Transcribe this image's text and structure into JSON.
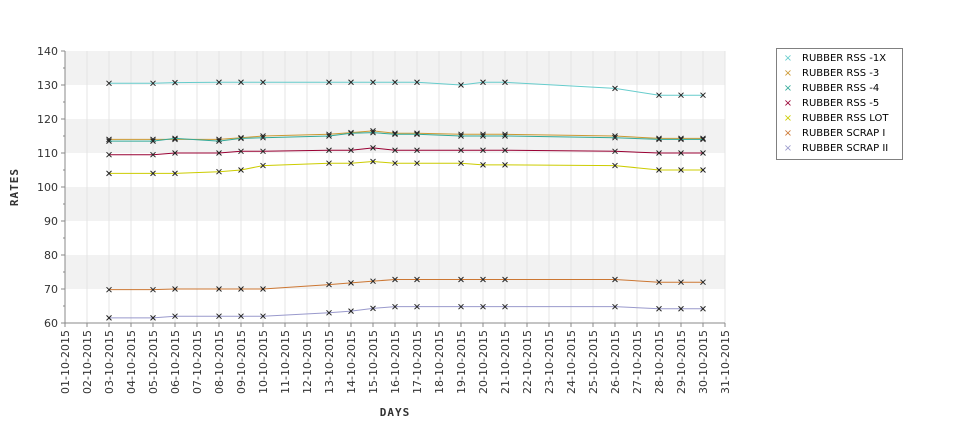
{
  "chart_data": {
    "type": "line",
    "xlabel": "DAYS",
    "ylabel": "RATES",
    "ylim": [
      60,
      140
    ],
    "yticks": [
      60,
      70,
      80,
      90,
      100,
      110,
      120,
      130,
      140
    ],
    "xlim": [
      "01-10-2015",
      "31-10-2015"
    ],
    "xticks": [
      "01-10-2015",
      "02-10-2015",
      "03-10-2015",
      "04-10-2015",
      "05-10-2015",
      "06-10-2015",
      "07-10-2015",
      "08-10-2015",
      "09-10-2015",
      "10-10-2015",
      "11-10-2015",
      "12-10-2015",
      "13-10-2015",
      "14-10-2015",
      "15-10-2015",
      "16-10-2015",
      "17-10-2015",
      "18-10-2015",
      "19-10-2015",
      "20-10-2015",
      "21-10-2015",
      "22-10-2015",
      "23-10-2015",
      "24-10-2015",
      "25-10-2015",
      "26-10-2015",
      "27-10-2015",
      "28-10-2015",
      "29-10-2015",
      "30-10-2015",
      "31-10-2015"
    ],
    "x": [
      "03-10-2015",
      "05-10-2015",
      "06-10-2015",
      "08-10-2015",
      "09-10-2015",
      "10-10-2015",
      "13-10-2015",
      "14-10-2015",
      "15-10-2015",
      "16-10-2015",
      "17-10-2015",
      "19-10-2015",
      "20-10-2015",
      "21-10-2015",
      "26-10-2015",
      "28-10-2015",
      "29-10-2015",
      "30-10-2015"
    ],
    "legend_position": "right",
    "grid": "horizontal bands",
    "series": [
      {
        "name": "RUBBER RSS -1X",
        "color": "#66cccc",
        "values": [
          130.5,
          130.5,
          130.7,
          130.8,
          130.8,
          130.8,
          130.8,
          130.8,
          130.8,
          130.8,
          130.8,
          130,
          130.8,
          130.8,
          129,
          127,
          127,
          127
        ]
      },
      {
        "name": "RUBBER RSS -3",
        "color": "#cc9933",
        "values": [
          114,
          114,
          114,
          114,
          114.5,
          115,
          115.5,
          116,
          116.5,
          115.8,
          115.8,
          115.5,
          115.5,
          115.5,
          115,
          114.3,
          114.3,
          114.3
        ]
      },
      {
        "name": "RUBBER RSS -4",
        "color": "#33aa99",
        "values": [
          113.5,
          113.5,
          114.3,
          113.5,
          114.3,
          114.5,
          115,
          115.8,
          116,
          115.5,
          115.5,
          115,
          115,
          115,
          114.5,
          114,
          114,
          114
        ]
      },
      {
        "name": "RUBBER RSS -5",
        "color": "#990033",
        "values": [
          109.5,
          109.5,
          110,
          110,
          110.5,
          110.5,
          110.8,
          110.8,
          111.5,
          110.8,
          110.8,
          110.8,
          110.8,
          110.8,
          110.5,
          110,
          110,
          110
        ]
      },
      {
        "name": "RUBBER RSS LOT",
        "color": "#cccc00",
        "values": [
          104,
          104,
          104,
          104.5,
          105,
          106.3,
          107,
          107,
          107.5,
          107,
          107,
          107,
          106.5,
          106.5,
          106.3,
          105,
          105,
          105
        ]
      },
      {
        "name": "RUBBER SCRAP I",
        "color": "#cc7733",
        "values": [
          69.8,
          69.8,
          70,
          70,
          70,
          70,
          71.3,
          71.8,
          72.3,
          72.8,
          72.8,
          72.8,
          72.8,
          72.8,
          72.8,
          72,
          72,
          72
        ]
      },
      {
        "name": "RUBBER SCRAP II",
        "color": "#9999cc",
        "values": [
          61.5,
          61.5,
          62,
          62,
          62,
          62,
          63,
          63.5,
          64.3,
          64.8,
          64.8,
          64.8,
          64.8,
          64.8,
          64.8,
          64.2,
          64.2,
          64.2
        ]
      }
    ]
  }
}
